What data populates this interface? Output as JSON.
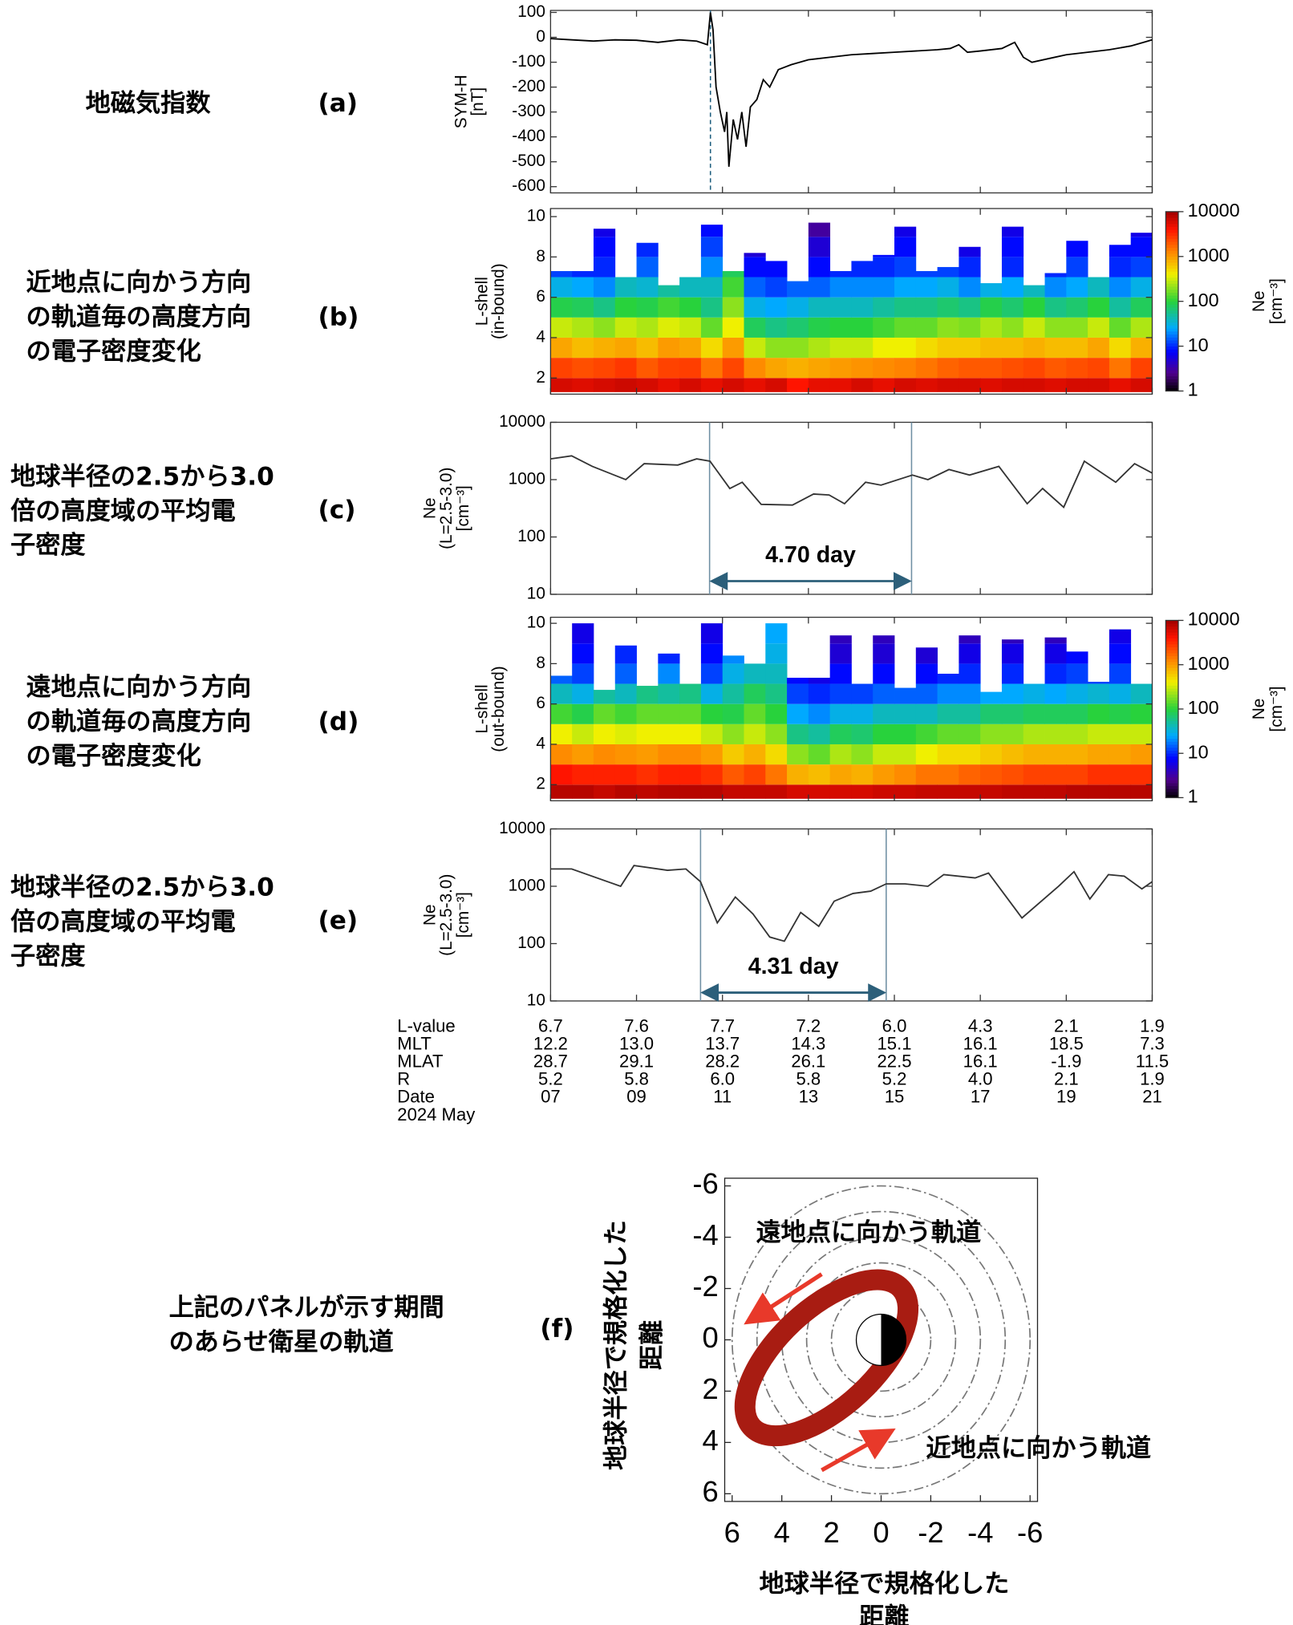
{
  "chart_data": [
    {
      "type": "line",
      "panel_label": "(a)",
      "description": [
        "地磁気指数"
      ],
      "ylabel": [
        "SYM-H",
        "[nT]"
      ],
      "xlim": [
        7,
        21
      ],
      "xticks": [
        7,
        9,
        11,
        13,
        15,
        17,
        19,
        21
      ],
      "ylim": [
        -625,
        108
      ],
      "yticks": [
        100,
        0,
        -100,
        -200,
        -300,
        -400,
        -500,
        -600
      ],
      "x": [
        7.0,
        7.5,
        8.0,
        8.5,
        9.0,
        9.5,
        10.0,
        10.4,
        10.65,
        10.72,
        10.78,
        10.85,
        10.95,
        11.05,
        11.1,
        11.15,
        11.25,
        11.35,
        11.45,
        11.55,
        11.65,
        11.8,
        11.95,
        12.1,
        12.3,
        12.6,
        13.0,
        13.5,
        14.0,
        14.5,
        15.0,
        15.5,
        16.0,
        16.3,
        16.5,
        16.7,
        17.0,
        17.5,
        17.8,
        18.0,
        18.2,
        18.6,
        19.0,
        19.5,
        20.0,
        20.5,
        20.8,
        21.0
      ],
      "values": [
        -5,
        -10,
        -15,
        -10,
        -12,
        -20,
        -10,
        -15,
        -30,
        100,
        30,
        -200,
        -300,
        -380,
        -300,
        -520,
        -330,
        -410,
        -300,
        -440,
        -280,
        -250,
        -170,
        -200,
        -130,
        -110,
        -90,
        -80,
        -70,
        -65,
        -60,
        -55,
        -50,
        -45,
        -30,
        -60,
        -55,
        -45,
        -20,
        -80,
        -100,
        -85,
        -70,
        -60,
        -50,
        -35,
        -20,
        -10
      ],
      "color": "#000000",
      "vlines": [
        10.72
      ],
      "vline_color": "#1f5f7f"
    },
    {
      "type": "heatmap",
      "panel_label": "(b)",
      "description": [
        "近地点に向かう方向",
        "の軌道毎の高度方向",
        "の電子密度変化"
      ],
      "ylabel": [
        "L-shell",
        "(in-bound)"
      ],
      "xlim": [
        7,
        21
      ],
      "xticks": [
        7,
        9,
        11,
        13,
        15,
        17,
        19,
        21
      ],
      "ylim": [
        1.2,
        10.4
      ],
      "yticks": [
        2,
        4,
        6,
        8,
        10
      ],
      "x": [
        7.25,
        7.75,
        8.25,
        8.75,
        9.25,
        9.75,
        10.25,
        10.75,
        11.25,
        11.75,
        12.25,
        12.75,
        13.25,
        13.75,
        14.25,
        14.75,
        15.25,
        15.75,
        16.25,
        16.75,
        17.25,
        17.75,
        18.25,
        18.75,
        19.25,
        19.75,
        20.25,
        20.75
      ],
      "l_edges": [
        1.3,
        2,
        3,
        4,
        5,
        6,
        7,
        8,
        9,
        10
      ],
      "lmax": [
        7.3,
        7.3,
        9.4,
        7.0,
        8.7,
        6.6,
        7.0,
        9.6,
        7.3,
        8.2,
        7.8,
        6.8,
        9.7,
        7.3,
        7.8,
        8.1,
        9.5,
        7.3,
        7.5,
        8.5,
        6.7,
        9.5,
        6.6,
        7.2,
        8.8,
        7.0,
        8.6,
        9.2
      ],
      "values": [
        [
          6000,
          2500,
          900,
          300,
          90,
          30,
          12,
          null,
          null
        ],
        [
          5500,
          2200,
          700,
          250,
          80,
          25,
          10,
          null,
          null
        ],
        [
          6000,
          2400,
          800,
          200,
          60,
          20,
          10,
          8,
          6
        ],
        [
          6500,
          2800,
          900,
          300,
          100,
          40,
          null,
          null,
          null
        ],
        [
          6000,
          2000,
          700,
          250,
          90,
          35,
          15,
          10,
          null
        ],
        [
          5000,
          2500,
          1000,
          350,
          120,
          50,
          null,
          null,
          null
        ],
        [
          6000,
          2600,
          900,
          300,
          100,
          40,
          null,
          null,
          null
        ],
        [
          5000,
          1500,
          500,
          150,
          60,
          40,
          20,
          12,
          8
        ],
        [
          6000,
          2400,
          1000,
          400,
          200,
          120,
          80,
          null,
          null
        ],
        [
          5000,
          1200,
          300,
          80,
          30,
          15,
          8,
          5,
          null
        ],
        [
          6000,
          900,
          200,
          60,
          25,
          12,
          8,
          null,
          null
        ],
        [
          4000,
          800,
          200,
          70,
          30,
          15,
          null,
          null,
          null
        ],
        [
          5000,
          900,
          250,
          90,
          40,
          15,
          8,
          5,
          3
        ],
        [
          5000,
          1000,
          300,
          100,
          40,
          20,
          10,
          null,
          null
        ],
        [
          6000,
          1100,
          300,
          100,
          40,
          20,
          10,
          null,
          null
        ],
        [
          5000,
          1200,
          400,
          120,
          50,
          20,
          10,
          8,
          null
        ],
        [
          6000,
          1300,
          400,
          150,
          60,
          25,
          12,
          8,
          6
        ],
        [
          5500,
          1500,
          500,
          150,
          60,
          25,
          12,
          null,
          null
        ],
        [
          6000,
          1800,
          600,
          200,
          70,
          30,
          12,
          null,
          null
        ],
        [
          6000,
          2000,
          600,
          180,
          60,
          20,
          10,
          6,
          null
        ],
        [
          5500,
          2000,
          700,
          250,
          90,
          30,
          null,
          null,
          null
        ],
        [
          6000,
          2200,
          700,
          200,
          70,
          25,
          10,
          8,
          6
        ],
        [
          6000,
          2400,
          800,
          300,
          100,
          40,
          null,
          null,
          null
        ],
        [
          5500,
          2000,
          700,
          200,
          60,
          20,
          10,
          null,
          null
        ],
        [
          6000,
          2200,
          700,
          200,
          70,
          25,
          12,
          8,
          null
        ],
        [
          6000,
          2400,
          900,
          300,
          100,
          40,
          null,
          null,
          null
        ],
        [
          5000,
          1500,
          500,
          150,
          50,
          20,
          10,
          8,
          null
        ],
        [
          6000,
          2500,
          800,
          250,
          80,
          30,
          12,
          8,
          6
        ]
      ],
      "clim": [
        1,
        10000
      ],
      "cticks": [
        1,
        10,
        100,
        1000,
        10000
      ],
      "colorbar_label": [
        "Ne",
        "[cm⁻³]"
      ]
    },
    {
      "type": "line",
      "log": true,
      "panel_label": "(c)",
      "description": [
        "地球半径の2.5から3.0",
        "倍の高度域の平均電",
        "子密度"
      ],
      "ylabel": [
        "Ne",
        "(L=2.5-3.0)",
        "[cm⁻³]"
      ],
      "xlim": [
        7,
        21
      ],
      "xticks": [
        7,
        9,
        11,
        13,
        15,
        17,
        19,
        21
      ],
      "ylim": [
        10,
        10000
      ],
      "yticks": [
        10,
        100,
        1000,
        10000
      ],
      "x": [
        7.0,
        7.49,
        7.97,
        8.75,
        9.18,
        9.96,
        10.4,
        10.71,
        11.17,
        11.46,
        11.9,
        12.63,
        13.12,
        13.48,
        13.84,
        14.33,
        14.69,
        15.42,
        15.78,
        16.27,
        16.75,
        17.43,
        18.09,
        18.45,
        18.94,
        19.42,
        20.15,
        20.59,
        21.0
      ],
      "values": [
        2300,
        2600,
        1700,
        1000,
        1900,
        1800,
        2300,
        2100,
        700,
        900,
        370,
        360,
        560,
        540,
        380,
        900,
        800,
        1200,
        1000,
        1500,
        1200,
        1700,
        380,
        700,
        330,
        2100,
        900,
        1900,
        1300
      ],
      "color": "#333333",
      "vlines": [
        10.7,
        15.4
      ],
      "vline_color": "#6f8fa3",
      "annotation": {
        "text": "4.70 day",
        "x": [
          10.7,
          15.4
        ],
        "y": 17
      }
    },
    {
      "type": "heatmap",
      "panel_label": "(d)",
      "description": [
        "遠地点に向かう方向",
        "の軌道毎の高度方向",
        "の電子密度変化"
      ],
      "ylabel": [
        "L-shell",
        "(out-bound)"
      ],
      "xlim": [
        7,
        21
      ],
      "xticks": [
        7,
        9,
        11,
        13,
        15,
        17,
        19,
        21
      ],
      "ylim": [
        1.2,
        10.3
      ],
      "yticks": [
        2,
        4,
        6,
        8,
        10
      ],
      "x": [
        7.25,
        7.75,
        8.25,
        8.75,
        9.25,
        9.75,
        10.25,
        10.75,
        11.25,
        11.75,
        12.25,
        12.75,
        13.25,
        13.75,
        14.25,
        14.75,
        15.25,
        15.75,
        16.25,
        16.75,
        17.25,
        17.75,
        18.25,
        18.75,
        19.25,
        19.75,
        20.25,
        20.75
      ],
      "l_edges": [
        1.3,
        2,
        3,
        4,
        5,
        6,
        7,
        8,
        9,
        10
      ],
      "lmax": [
        7.4,
        10.0,
        6.7,
        8.9,
        6.9,
        8.5,
        7.0,
        10.0,
        8.4,
        8.0,
        10.0,
        7.3,
        7.3,
        9.4,
        7.0,
        9.4,
        6.8,
        8.8,
        7.5,
        9.4,
        6.6,
        9.2,
        7.0,
        9.3,
        8.6,
        7.1,
        9.7,
        7.0
      ],
      "values": [
        [
          8000,
          4000,
          1200,
          400,
          120,
          40,
          15,
          null,
          null
        ],
        [
          8000,
          3500,
          1000,
          300,
          90,
          30,
          12,
          8,
          6
        ],
        [
          7000,
          3500,
          1200,
          400,
          150,
          50,
          null,
          null,
          null
        ],
        [
          8000,
          3500,
          1100,
          350,
          120,
          40,
          15,
          10,
          null
        ],
        [
          7500,
          3000,
          1000,
          400,
          150,
          60,
          null,
          null,
          null
        ],
        [
          8000,
          3500,
          1200,
          400,
          150,
          50,
          20,
          10,
          null
        ],
        [
          8000,
          3500,
          1200,
          400,
          150,
          60,
          null,
          null,
          null
        ],
        [
          8000,
          3000,
          1000,
          300,
          100,
          30,
          12,
          8,
          6
        ],
        [
          7000,
          2000,
          600,
          200,
          90,
          50,
          30,
          20,
          null
        ],
        [
          7000,
          2500,
          800,
          300,
          150,
          80,
          40,
          null,
          null
        ],
        [
          7000,
          1500,
          500,
          200,
          100,
          60,
          40,
          30,
          25
        ],
        [
          6000,
          800,
          200,
          60,
          25,
          12,
          8,
          null,
          null
        ],
        [
          6000,
          700,
          150,
          50,
          20,
          10,
          6,
          null,
          null
        ],
        [
          6000,
          900,
          250,
          80,
          30,
          12,
          8,
          5,
          4
        ],
        [
          6000,
          800,
          200,
          70,
          30,
          12,
          null,
          null,
          null
        ],
        [
          6500,
          1000,
          300,
          100,
          40,
          15,
          8,
          5,
          4
        ],
        [
          6500,
          1200,
          300,
          100,
          40,
          15,
          null,
          null,
          null
        ],
        [
          7000,
          1500,
          400,
          120,
          40,
          15,
          8,
          5,
          null
        ],
        [
          7000,
          1500,
          500,
          150,
          50,
          20,
          10,
          null,
          null
        ],
        [
          7000,
          1800,
          500,
          150,
          50,
          20,
          10,
          6,
          4
        ],
        [
          7000,
          2000,
          600,
          200,
          70,
          25,
          null,
          null,
          null
        ],
        [
          7500,
          2200,
          700,
          200,
          70,
          25,
          10,
          6,
          4
        ],
        [
          7500,
          2500,
          800,
          250,
          80,
          30,
          null,
          null,
          null
        ],
        [
          7500,
          2500,
          800,
          250,
          80,
          25,
          10,
          6,
          4
        ],
        [
          8000,
          2500,
          800,
          250,
          80,
          30,
          12,
          8,
          null
        ],
        [
          8000,
          3000,
          900,
          300,
          100,
          35,
          12,
          null,
          null
        ],
        [
          8000,
          3000,
          900,
          300,
          90,
          30,
          12,
          8,
          6
        ],
        [
          8000,
          3000,
          1000,
          300,
          100,
          40,
          null,
          null,
          null
        ]
      ],
      "clim": [
        1,
        10000
      ],
      "cticks": [
        1,
        10,
        100,
        1000,
        10000
      ],
      "colorbar_label": [
        "Ne",
        "[cm⁻³]"
      ]
    },
    {
      "type": "line",
      "log": true,
      "panel_label": "(e)",
      "description": [
        "地球半径の2.5から3.0",
        "倍の高度域の平均電",
        "子密度"
      ],
      "ylabel": [
        "Ne",
        "(L=2.5-3.0)",
        "[cm⁻³]"
      ],
      "xlim": [
        7,
        21
      ],
      "xticks": [
        7,
        9,
        11,
        13,
        15,
        17,
        19,
        21
      ],
      "ylim": [
        10,
        10000
      ],
      "yticks": [
        10,
        100,
        1000,
        10000
      ],
      "x": [
        7.0,
        7.49,
        8.63,
        8.94,
        9.72,
        10.15,
        10.49,
        10.88,
        11.3,
        11.71,
        12.1,
        12.44,
        12.82,
        13.24,
        13.6,
        14.04,
        14.45,
        14.81,
        15.25,
        15.78,
        16.15,
        16.88,
        17.19,
        17.97,
        18.82,
        19.18,
        19.55,
        19.98,
        20.35,
        20.76,
        21.0
      ],
      "values": [
        2000,
        2000,
        1000,
        2300,
        1900,
        2000,
        1200,
        230,
        650,
        330,
        130,
        110,
        350,
        200,
        550,
        750,
        820,
        1100,
        1100,
        1000,
        1600,
        1400,
        1700,
        280,
        1000,
        1800,
        600,
        1600,
        1500,
        900,
        1200
      ],
      "color": "#333333",
      "vlines": [
        10.49,
        14.81
      ],
      "vline_color": "#6f8fa3",
      "annotation": {
        "text": "4.31 day",
        "x": [
          10.49,
          14.81
        ],
        "y": 14
      }
    },
    {
      "type": "table",
      "xlim": [
        7,
        21
      ],
      "x": [
        7,
        9,
        11,
        13,
        15,
        17,
        19,
        21
      ],
      "rows": [
        {
          "label": "L-value",
          "values": [
            "6.7",
            "7.6",
            "7.7",
            "7.2",
            "6.0",
            "4.3",
            "2.1",
            "1.9"
          ]
        },
        {
          "label": "MLT",
          "values": [
            "12.2",
            "13.0",
            "13.7",
            "14.3",
            "15.1",
            "16.1",
            "18.5",
            "7.3"
          ]
        },
        {
          "label": "MLAT",
          "values": [
            "28.7",
            "29.1",
            "28.2",
            "26.1",
            "22.5",
            "16.1",
            "-1.9",
            "11.5"
          ]
        },
        {
          "label": "R",
          "values": [
            "5.2",
            "5.8",
            "6.0",
            "5.8",
            "5.2",
            "4.0",
            "2.1",
            "1.9"
          ]
        },
        {
          "label": "Date",
          "values": [
            "07",
            "09",
            "11",
            "13",
            "15",
            "17",
            "19",
            "21"
          ]
        }
      ],
      "footer": "2024 May"
    },
    {
      "type": "orbit",
      "panel_label": "(f)",
      "description": [
        "上記のパネルが示す期間",
        "のあらせ衛星の軌道"
      ],
      "xlim": [
        6.3,
        -6.3
      ],
      "ylim": [
        -6.3,
        6.3
      ],
      "xticks": [
        6,
        4,
        2,
        0,
        -2,
        -4,
        -6
      ],
      "yticks": [
        -6,
        -4,
        -2,
        0,
        2,
        4,
        6
      ],
      "circles": [
        2,
        3,
        4,
        5,
        6
      ],
      "earth_radius": 1,
      "orbit": {
        "center": [
          2.2,
          0.7
        ],
        "semi_axes": [
          4.1,
          1.9
        ],
        "tilt": 43,
        "color": "#a81c12"
      },
      "apogee_label": "遠地点に向かう軌道",
      "perigee_label": "近地点に向かう軌道",
      "xlabel": [
        "地球半径で規格化した",
        "距離"
      ],
      "ylabel": [
        "地球半径で規格化した",
        "距離"
      ]
    }
  ]
}
